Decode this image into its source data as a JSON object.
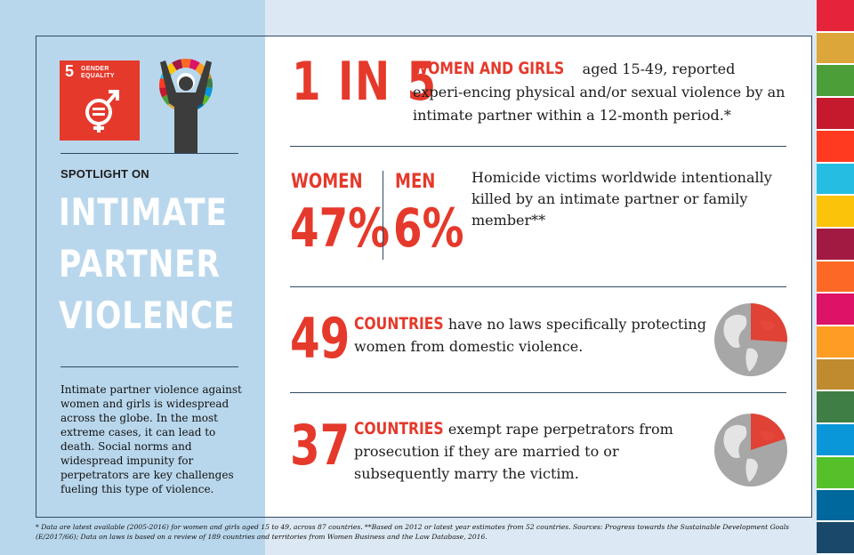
{
  "colors": {
    "accent": "#e5392b",
    "navy": "#2e4a62",
    "panel_blue": "#b9d7ec",
    "stripes": [
      "#e5243b",
      "#dda63a",
      "#4c9f38",
      "#c5192d",
      "#ff3a21",
      "#26bde2",
      "#fcc30b",
      "#a21942",
      "#fd6925",
      "#dd1367",
      "#fd9d24",
      "#bf8b2e",
      "#3f7e44",
      "#0a97d9",
      "#56c02b",
      "#00689d",
      "#19486a"
    ]
  },
  "sdg": {
    "number": "5",
    "label_line1": "GENDER",
    "label_line2": "EQUALITY",
    "icon": "gender-equality-icon"
  },
  "left": {
    "spotlight": "SPOTLIGHT ON",
    "title_lines": [
      "INTIMATE",
      "PARTNER",
      "VIOLENCE"
    ],
    "paragraph": "Intimate partner violence against women and girls is widespread across the globe. In the most extreme cases, it can lead to death. Social norms and widespread impunity for perpetrators are key challenges fueling this type of violence."
  },
  "stat1": {
    "big": "1 IN 5",
    "highlight": "WOMEN AND GIRLS",
    "text": " aged 15-49, reported experi-encing physical and/or sexual violence by an intimate partner within a 12-month period.*"
  },
  "stat2": {
    "women_label": "WOMEN",
    "women_value": "47%",
    "men_label": "MEN",
    "men_value": "6%",
    "text": "Homicide victims worldwide intentionally killed by an intimate partner or family member**"
  },
  "stat3": {
    "big": "49",
    "highlight": "COUNTRIES",
    "text": " have no laws specifically protecting women from domestic violence.",
    "fraction": 0.26
  },
  "stat4": {
    "big": "37",
    "highlight": "COUNTRIES",
    "text": " exempt rape perpetrators from prosecution if they are married to or subsequently marry the victim.",
    "fraction": 0.2
  },
  "footnote": "* Data are latest available (2005-2016) for women and girls aged 15 to 49, across 87 countries.   **Based on 2012 or latest year estimates from 52 countries.  Sources: Progress towards the Sustainable Development Goals (E/2017/66); Data on laws is based on a review of 189 countries and territories from Women Business and the Law Database, 2016."
}
